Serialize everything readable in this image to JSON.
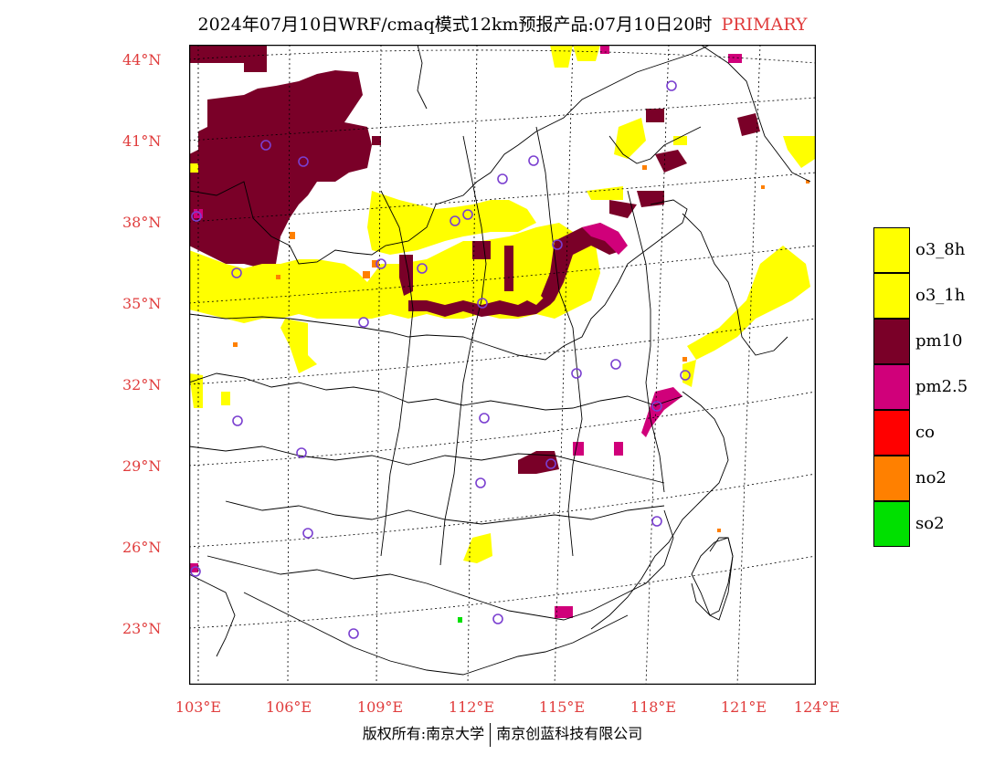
{
  "title": {
    "main": "2024年07月10日WRF/cmaq模式12km预报产品:07月10日20时",
    "tag": "PRIMARY"
  },
  "axes": {
    "latitudes": [
      "44°N",
      "41°N",
      "38°N",
      "35°N",
      "32°N",
      "29°N",
      "26°N",
      "23°N"
    ],
    "longitudes": [
      "103°E",
      "106°E",
      "109°E",
      "112°E",
      "115°E",
      "118°E",
      "121°E",
      "124°E"
    ]
  },
  "legend": [
    {
      "label": "o3_8h",
      "color": "#ffff00"
    },
    {
      "label": "o3_1h",
      "color": "#ffff00"
    },
    {
      "label": "pm10",
      "color": "#7a0028"
    },
    {
      "label": "pm2.5",
      "color": "#d0007a"
    },
    {
      "label": "co",
      "color": "#ff0000"
    },
    {
      "label": "no2",
      "color": "#ff8000"
    },
    {
      "label": "so2",
      "color": "#00e000"
    }
  ],
  "footer": {
    "left": "版权所有:南京大学",
    "right": "南京创蓝科技有限公司"
  }
}
